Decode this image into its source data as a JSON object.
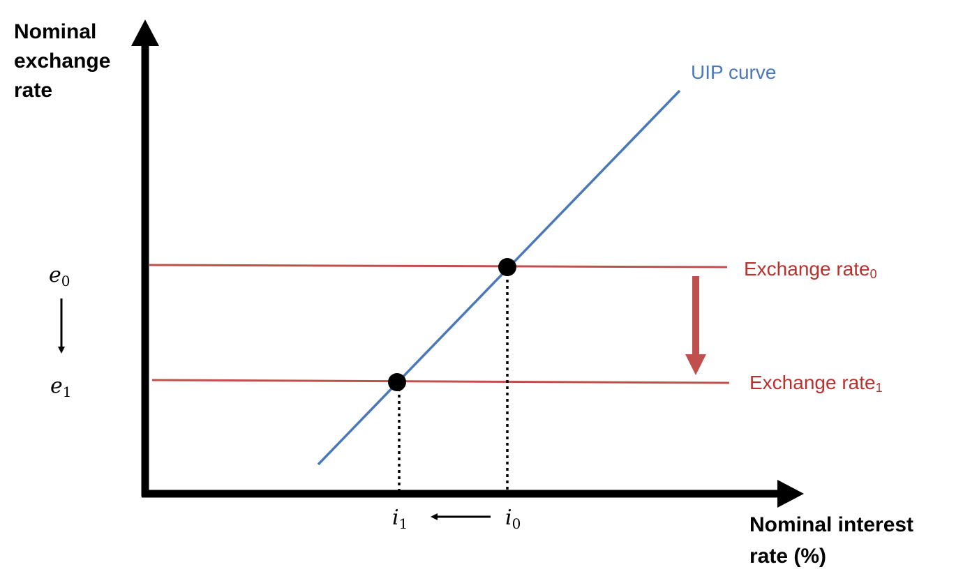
{
  "diagram": {
    "type": "uip-exchange-rate-diagram",
    "y_axis_label_lines": [
      "Nominal",
      "exchange",
      "rate"
    ],
    "x_axis_label_lines": [
      "Nominal interest",
      "rate (%)"
    ],
    "uip_curve_label": "UIP curve",
    "exchange_rate_0": {
      "base": "Exchange rate",
      "subscript": "0"
    },
    "exchange_rate_1": {
      "base": "Exchange rate",
      "subscript": "1"
    },
    "e0": {
      "symbol": "e",
      "subscript": "0"
    },
    "e1": {
      "symbol": "e",
      "subscript": "1"
    },
    "i0": {
      "symbol": "i",
      "subscript": "0"
    },
    "i1": {
      "symbol": "i",
      "subscript": "1"
    },
    "colors": {
      "axis": "#000000",
      "uip_curve": "#4a78b8",
      "exchange_rate_lines": "#c0504d",
      "shift_arrow": "#c0504d",
      "rate_label_text": "#b8312f",
      "uip_label_text": "#4a78b8",
      "equilibrium_point": "#000000"
    }
  }
}
